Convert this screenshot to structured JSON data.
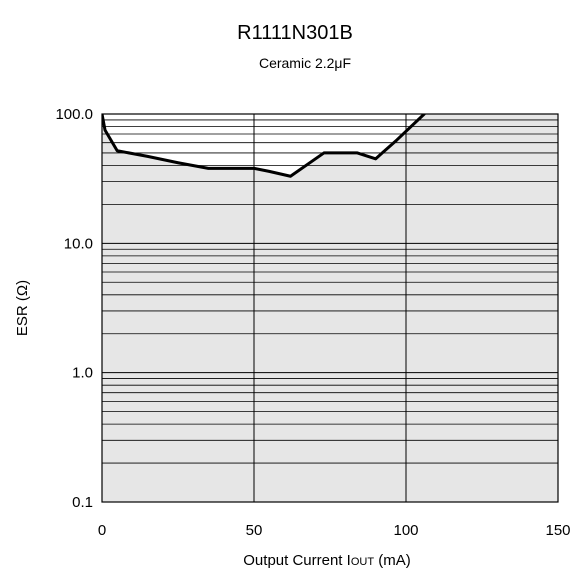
{
  "chart_data": {
    "type": "line",
    "title": "R1111N301B",
    "subtitle": "Ceramic 2.2μF",
    "xlabel": "Output Current IOUT (mA)",
    "xlabel_parts": {
      "prefix": "Output Current I",
      "subscript": "OUT",
      "suffix": " (mA)"
    },
    "ylabel": "ESR (Ω)",
    "x_scale": "linear",
    "y_scale": "log",
    "xlim": [
      0,
      150
    ],
    "ylim": [
      0.1,
      100
    ],
    "x_ticks": [
      0,
      50,
      100,
      150
    ],
    "x_tick_labels": [
      "0",
      "50",
      "100",
      "150"
    ],
    "y_ticks": [
      0.1,
      1,
      10,
      100
    ],
    "y_tick_labels": [
      "0.1",
      "1.0",
      "10.0",
      "100.0"
    ],
    "grid": true,
    "stable_region_color": "#e6e6e6",
    "unstable_region_color": "#ffffff",
    "line_color": "#000000",
    "grid_color": "#000000",
    "series": [
      {
        "x": [
          0,
          1,
          5,
          15,
          25,
          35,
          45,
          50,
          55,
          62,
          73,
          84,
          90,
          97,
          106
        ],
        "y": [
          100,
          75,
          52,
          47,
          42,
          38,
          38,
          38,
          36,
          33,
          50,
          50,
          45,
          63,
          100
        ]
      }
    ]
  }
}
